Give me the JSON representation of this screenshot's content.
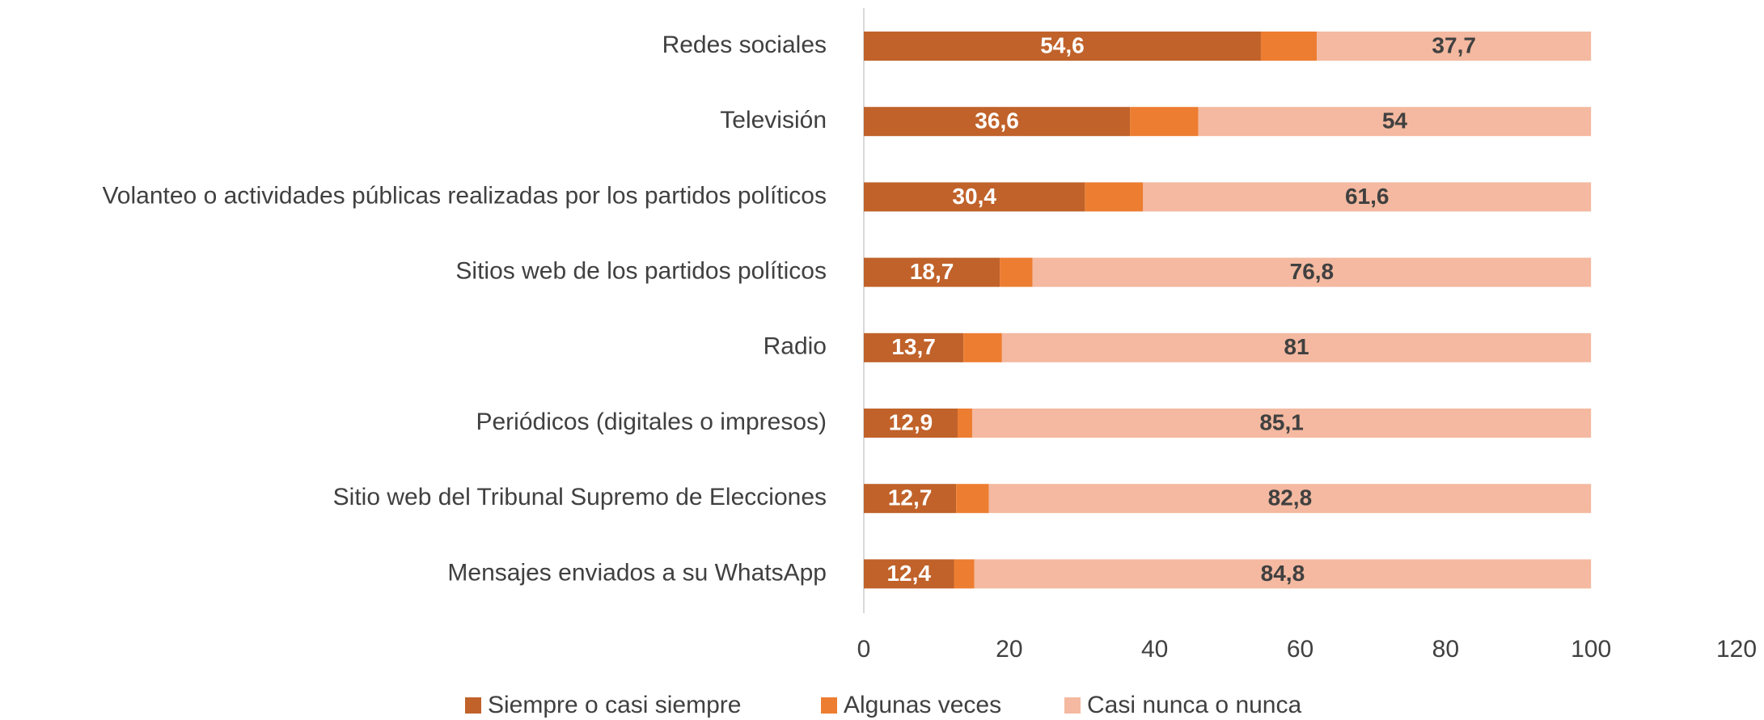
{
  "chart_data": {
    "type": "stacked-barh",
    "categories": [
      "Redes sociales",
      "Televisión",
      "Volanteo o actividades públicas realizadas por los partidos políticos",
      "Sitios web de los partidos políticos",
      "Radio",
      "Periódicos (digitales o impresos)",
      "Sitio web del Tribunal Supremo de Elecciones",
      "Mensajes enviados a su WhatsApp"
    ],
    "series": [
      {
        "name": "Siempre o casi siempre",
        "color": "#c0622a",
        "values": [
          54.6,
          36.6,
          30.4,
          18.7,
          13.7,
          12.9,
          12.7,
          12.4
        ],
        "value_labels": [
          "54,6",
          "36,6",
          "30,4",
          "18,7",
          "13,7",
          "12,9",
          "12,7",
          "12,4"
        ]
      },
      {
        "name": "Algunas veces",
        "color": "#ed7d31",
        "values": [
          7.7,
          9.4,
          8.0,
          4.5,
          5.3,
          2.0,
          4.5,
          2.8
        ]
      },
      {
        "name": "Casi nunca o nunca",
        "color": "#f4b9a0",
        "values": [
          37.7,
          54,
          61.6,
          76.8,
          81,
          85.1,
          82.8,
          84.8
        ],
        "value_labels": [
          "37,7",
          "54",
          "61,6",
          "76,8",
          "81",
          "85,1",
          "82,8",
          "84,8"
        ]
      }
    ],
    "xlim": [
      0,
      120
    ],
    "xticks": [
      0,
      20,
      40,
      60,
      80,
      100,
      120
    ],
    "grid": false,
    "legend": "bottom"
  }
}
